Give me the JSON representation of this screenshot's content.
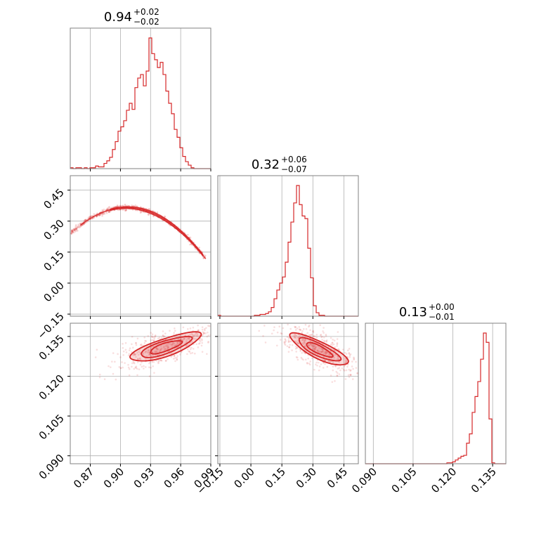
{
  "chart_data": {
    "type": "corner",
    "color": "#d62728",
    "grid": true,
    "params": [
      {
        "range": [
          0.85,
          0.99
        ],
        "ticks": [
          0.87,
          0.9,
          0.93,
          0.96,
          0.99
        ],
        "tick_labels": [
          "0.87",
          "0.90",
          "0.93",
          "0.96",
          "0.99"
        ],
        "title": {
          "value": "0.94",
          "plus": "+0.02",
          "minus": "−0.02"
        }
      },
      {
        "range": [
          -0.16,
          0.52
        ],
        "ticks": [
          -0.15,
          0.0,
          0.15,
          0.3,
          0.45
        ],
        "tick_labels": [
          "−0.15",
          "0.00",
          "0.15",
          "0.30",
          "0.45"
        ],
        "title": {
          "value": "0.32",
          "plus": "+0.06",
          "minus": "−0.07"
        }
      },
      {
        "range": [
          0.087,
          0.14
        ],
        "ticks": [
          0.09,
          0.105,
          0.12,
          0.135
        ],
        "tick_labels": [
          "0.090",
          "0.105",
          "0.120",
          "0.135"
        ],
        "title": {
          "value": "0.13",
          "plus": "+0.00",
          "minus": "−0.01"
        }
      }
    ],
    "histograms": [
      {
        "param": 0,
        "bin_start": 0.85,
        "bin_width": 0.0028,
        "counts": [
          1,
          0,
          1,
          1,
          0,
          1,
          0,
          1,
          1,
          3,
          2,
          2,
          6,
          9,
          13,
          22,
          31,
          43,
          48,
          55,
          67,
          75,
          68,
          93,
          104,
          108,
          95,
          112,
          150,
          132,
          125,
          116,
          122,
          108,
          89,
          75,
          63,
          45,
          36,
          24,
          14,
          8,
          4,
          1,
          0,
          0,
          0,
          0,
          0,
          0
        ]
      },
      {
        "param": 1,
        "bin_start": -0.16,
        "bin_width": 0.0136,
        "counts": [
          1,
          0,
          0,
          0,
          0,
          0,
          0,
          0,
          0,
          0,
          0,
          0,
          0,
          1,
          1,
          2,
          2,
          3,
          5,
          10,
          20,
          30,
          38,
          45,
          62,
          85,
          108,
          130,
          150,
          128,
          115,
          112,
          78,
          44,
          12,
          4,
          1,
          1,
          0,
          0,
          0,
          0,
          0,
          0,
          0,
          0,
          0,
          0,
          0,
          0
        ]
      },
      {
        "param": 2,
        "bin_start": 0.087,
        "bin_width": 0.00106,
        "counts": [
          0,
          0,
          0,
          0,
          0,
          0,
          0,
          0,
          0,
          0,
          0,
          0,
          0,
          0,
          0,
          0,
          0,
          0,
          0,
          0,
          0,
          0,
          0,
          0,
          0,
          0,
          0,
          0,
          0,
          1,
          1,
          2,
          4,
          6,
          8,
          9,
          22,
          32,
          55,
          72,
          88,
          112,
          140,
          130,
          48,
          1,
          0,
          0,
          0,
          0
        ]
      }
    ],
    "pairs": [
      {
        "x_param": 0,
        "y_param": 1,
        "relation": "y = 0.32 - 2.7*(x-0.94) - 40*(x-0.94)^2",
        "x_min": 0.851,
        "x_max": 0.985,
        "width": 0.012
      },
      {
        "x_param": 0,
        "y_param": 2,
        "center": [
          0.945,
          0.131
        ],
        "semi_axes": [
          0.035,
          0.0035
        ],
        "slope": 0.12
      },
      {
        "x_param": 1,
        "y_param": 2,
        "center": [
          0.33,
          0.13
        ],
        "semi_axes": [
          0.14,
          0.0035
        ],
        "slope": -0.035
      }
    ]
  }
}
